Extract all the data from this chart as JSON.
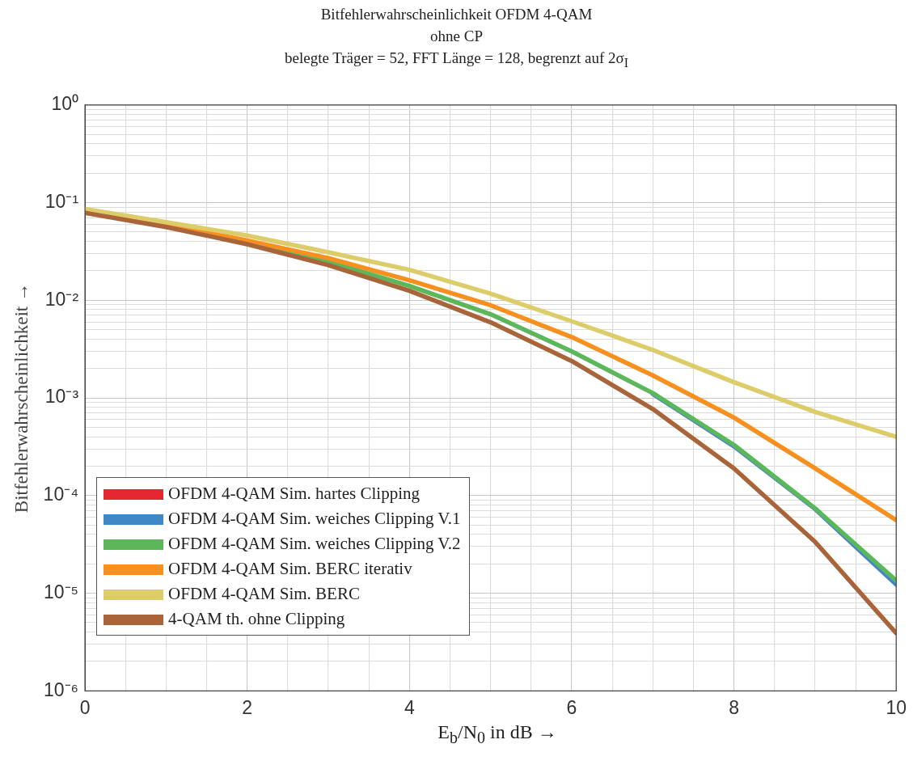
{
  "chart_data": {
    "type": "line",
    "title": "Bitfehlerwahrscheinlichkeit OFDM 4-QAM",
    "subtitle": "ohne CP",
    "annotations": [
      "belegte Träger = 52, FFT Länge = 128, begrenzt auf 2σ$_{I}$"
    ],
    "xlabel": "E$_{b}$/N$_{0}$ in dB →",
    "ylabel": "Bitfehlerwahrscheinlichkeit →",
    "x": [
      0,
      1,
      2,
      3,
      4,
      5,
      6,
      7,
      8,
      9,
      10
    ],
    "series": [
      {
        "name": "OFDM 4-QAM Sim. hartes Clipping",
        "color": "#e3262f",
        "values": [
          null,
          null,
          null,
          null,
          null,
          null,
          null,
          null,
          null,
          null,
          null
        ]
      },
      {
        "name": "OFDM 4-QAM Sim. weiches Clipping V.1",
        "color": "#3f88c5",
        "values": [
          null,
          null,
          null,
          null,
          null,
          null,
          null,
          0.0011,
          0.00032,
          7.3e-05,
          1.23e-05
        ]
      },
      {
        "name": "OFDM 4-QAM Sim. weiches Clipping V.2",
        "color": "#5cb65a",
        "values": [
          0.08,
          0.058,
          0.039,
          0.025,
          0.014,
          0.0072,
          0.003,
          0.00112,
          0.00033,
          7.4e-05,
          1.35e-05
        ]
      },
      {
        "name": "OFDM 4-QAM Sim. BERC iterativ",
        "color": "#f7901e",
        "values": [
          0.082,
          0.06,
          0.041,
          0.027,
          0.016,
          0.0089,
          0.0042,
          0.0017,
          0.00063,
          0.00019,
          5.6e-05
        ]
      },
      {
        "name": "OFDM 4-QAM Sim. BERC",
        "color": "#dccd6a",
        "values": [
          0.086,
          0.063,
          0.046,
          0.031,
          0.0205,
          0.0117,
          0.0061,
          0.0031,
          0.00145,
          0.00072,
          0.0004
        ]
      },
      {
        "name": "4-QAM th. ohne Clipping",
        "color": "#a9643a",
        "values": [
          0.0786,
          0.0563,
          0.0375,
          0.0229,
          0.0125,
          0.00595,
          0.00239,
          0.00077,
          0.00019,
          3.36e-05,
          3.9e-06
        ]
      }
    ],
    "log": "y",
    "xlim": [
      0,
      10
    ],
    "ylim": [
      1e-06,
      1
    ],
    "xticks": [
      0,
      {
        "value": 0.5,
        "label": null
      },
      {
        "value": 1,
        "label": null
      },
      {
        "value": 1.5,
        "label": null
      },
      2,
      {
        "value": 2.5,
        "label": null
      },
      {
        "value": 3,
        "label": null
      },
      {
        "value": 3.5,
        "label": null
      },
      4,
      {
        "value": 4.5,
        "label": null
      },
      {
        "value": 5,
        "label": null
      },
      {
        "value": 5.5,
        "label": null
      },
      6,
      {
        "value": 6.5,
        "label": null
      },
      {
        "value": 7,
        "label": null
      },
      {
        "value": 7.5,
        "label": null
      },
      8,
      {
        "value": 8.5,
        "label": null
      },
      {
        "value": 9,
        "label": null
      },
      {
        "value": 9.5,
        "label": null
      },
      10
    ],
    "yticks": [
      {
        "value": 1e-06,
        "label": "10⁻⁶"
      },
      {
        "value": 2e-06,
        "label": null
      },
      {
        "value": 3e-06,
        "label": null
      },
      {
        "value": 4e-06,
        "label": null
      },
      {
        "value": 5e-06,
        "label": null
      },
      {
        "value": 6e-06,
        "label": null
      },
      {
        "value": 7e-06,
        "label": null
      },
      {
        "value": 8e-06,
        "label": null
      },
      {
        "value": 9e-06,
        "label": null
      },
      {
        "value": 1e-05,
        "label": "10⁻⁵"
      },
      {
        "value": 2e-05,
        "label": null
      },
      {
        "value": 3e-05,
        "label": null
      },
      {
        "value": 4e-05,
        "label": null
      },
      {
        "value": 5e-05,
        "label": null
      },
      {
        "value": 6e-05,
        "label": null
      },
      {
        "value": 7e-05,
        "label": null
      },
      {
        "value": 8e-05,
        "label": null
      },
      {
        "value": 9e-05,
        "label": null
      },
      {
        "value": 0.0001,
        "label": "10⁻⁴"
      },
      {
        "value": 0.0002,
        "label": null
      },
      {
        "value": 0.0003,
        "label": null
      },
      {
        "value": 0.0004,
        "label": null
      },
      {
        "value": 0.0005,
        "label": null
      },
      {
        "value": 0.0006,
        "label": null
      },
      {
        "value": 0.0007,
        "label": null
      },
      {
        "value": 0.0008,
        "label": null
      },
      {
        "value": 0.0009,
        "label": null
      },
      {
        "value": 0.001,
        "label": "10⁻³"
      },
      {
        "value": 0.002,
        "label": null
      },
      {
        "value": 0.003,
        "label": null
      },
      {
        "value": 0.004,
        "label": null
      },
      {
        "value": 0.005,
        "label": null
      },
      {
        "value": 0.006,
        "label": null
      },
      {
        "value": 0.007,
        "label": null
      },
      {
        "value": 0.008,
        "label": null
      },
      {
        "value": 0.009,
        "label": null
      },
      {
        "value": 0.01,
        "label": "10⁻²"
      },
      {
        "value": 0.02,
        "label": null
      },
      {
        "value": 0.03,
        "label": null
      },
      {
        "value": 0.04,
        "label": null
      },
      {
        "value": 0.05,
        "label": null
      },
      {
        "value": 0.06,
        "label": null
      },
      {
        "value": 0.07,
        "label": null
      },
      {
        "value": 0.08,
        "label": null
      },
      {
        "value": 0.09,
        "label": null
      },
      {
        "value": 0.1,
        "label": "10⁻¹"
      },
      {
        "value": 0.2,
        "label": null
      },
      {
        "value": 0.3,
        "label": null
      },
      {
        "value": 0.4,
        "label": null
      },
      {
        "value": 0.5,
        "label": null
      },
      {
        "value": 0.6,
        "label": null
      },
      {
        "value": 0.7,
        "label": null
      },
      {
        "value": 0.8,
        "label": null
      },
      {
        "value": 0.9,
        "label": null
      },
      {
        "value": 1,
        "label": "10⁰"
      }
    ],
    "grid": true,
    "legend": "bottom left",
    "marker": "none",
    "line_style": "solid"
  }
}
